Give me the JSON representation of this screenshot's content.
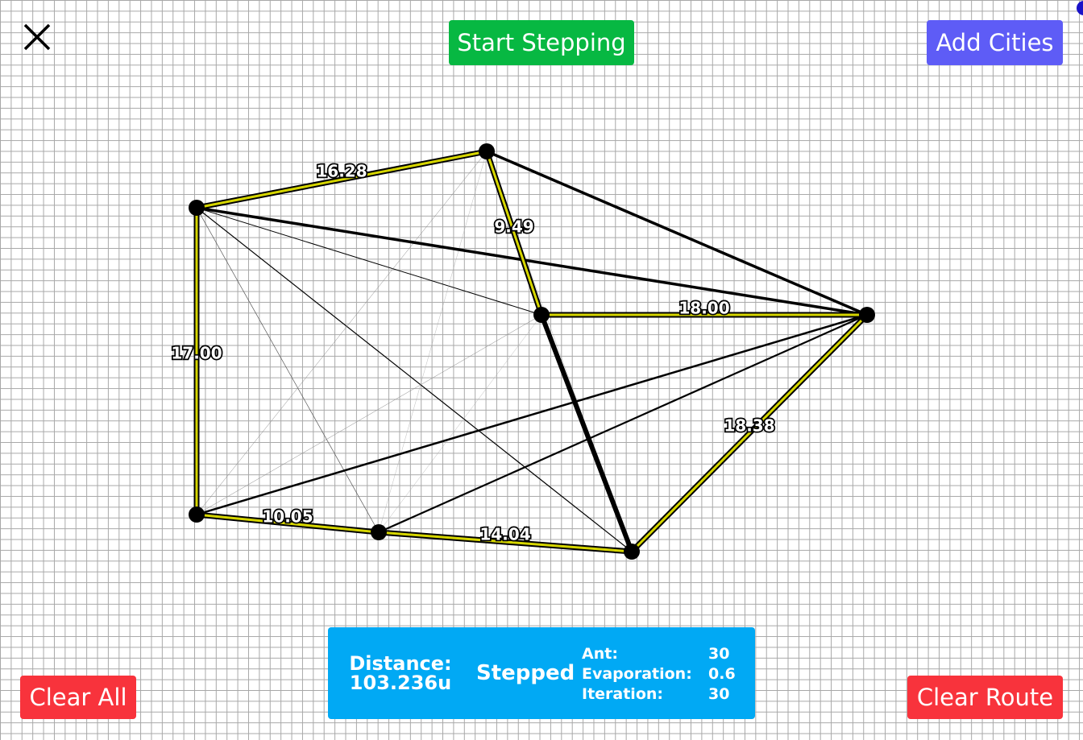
{
  "toolbar": {
    "close_icon": "close-icon",
    "start_label": "Start Stepping",
    "add_label": "Add Cities",
    "clear_all_label": "Clear All",
    "clear_route_label": "Clear Route"
  },
  "colors": {
    "start_button": "#07b842",
    "add_button": "#5e5cf6",
    "clear_buttons": "#f8333c",
    "info_panel": "#01a9f4",
    "route": "#d6d600"
  },
  "edge_labels": [
    "16.28",
    "9.49",
    "18.00",
    "17.00",
    "18.38",
    "10.05",
    "14.04"
  ],
  "info": {
    "distance_label": "Distance:",
    "distance_value": "103.236u",
    "status": "Stepped",
    "params": [
      {
        "label": "Ant:",
        "value": "30"
      },
      {
        "label": "Evaporation:",
        "value": "0.6"
      },
      {
        "label": "Iteration:",
        "value": "30"
      }
    ]
  }
}
